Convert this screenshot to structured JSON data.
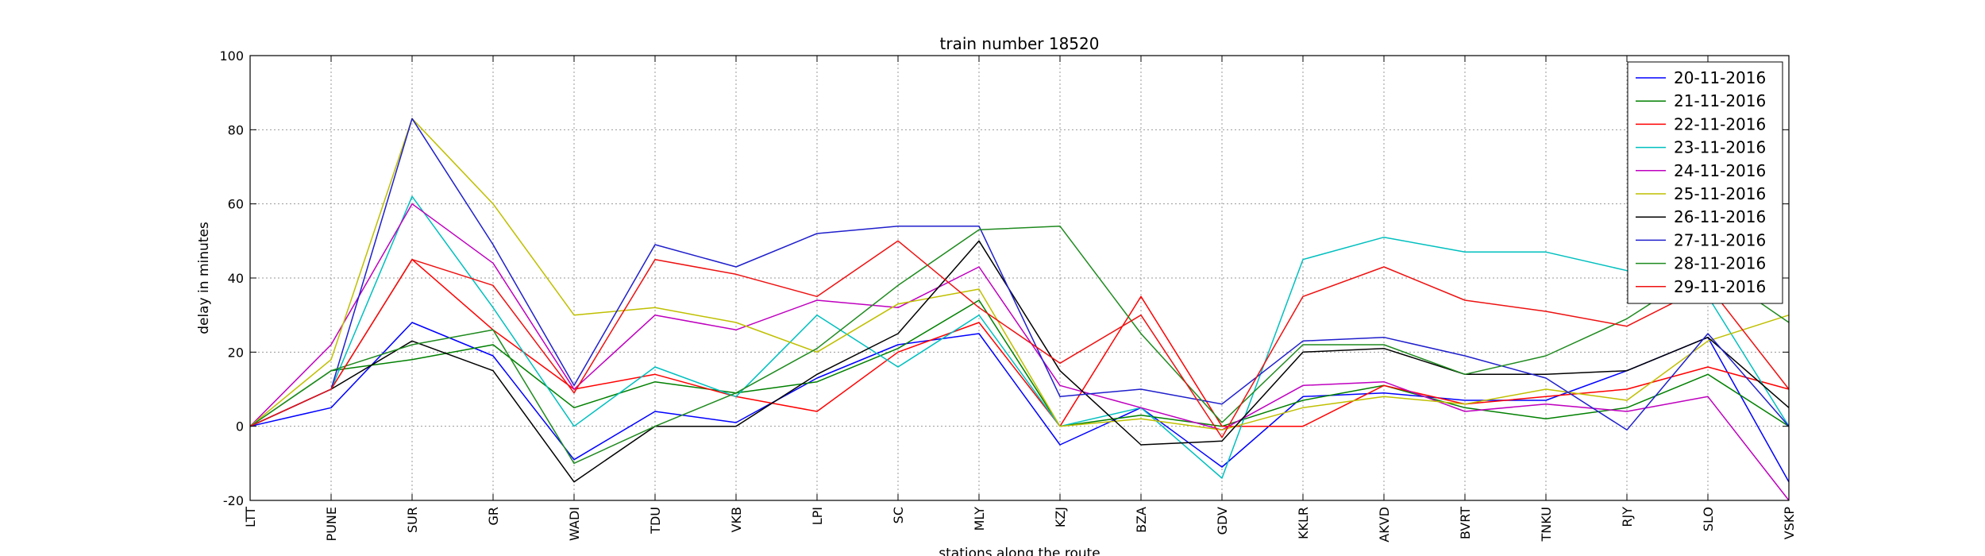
{
  "chart_data": {
    "type": "line",
    "title": "train number 18520",
    "xlabel": "stations along the route",
    "ylabel": "delay in minutes",
    "ylim": [
      -20,
      100
    ],
    "yticks": [
      -20,
      0,
      20,
      40,
      60,
      80,
      100
    ],
    "grid": true,
    "legend_position": "top-right",
    "categories": [
      "LTT",
      "PUNE",
      "SUR",
      "GR",
      "WADI",
      "TDU",
      "VKB",
      "LPI",
      "SC",
      "MLY",
      "KZJ",
      "BZA",
      "GDV",
      "KKLR",
      "AKVD",
      "BVRT",
      "TNKU",
      "RJY",
      "SLO",
      "VSKP"
    ],
    "series": [
      {
        "name": "20-11-2016",
        "color": "#0000ff",
        "values": [
          0,
          5,
          28,
          19,
          -9,
          4,
          1,
          13,
          22,
          25,
          -5,
          5,
          -11,
          8,
          9,
          7,
          7,
          15,
          24,
          -15
        ]
      },
      {
        "name": "21-11-2016",
        "color": "#008000",
        "values": [
          0,
          15,
          18,
          22,
          5,
          12,
          9,
          12,
          21,
          34,
          0,
          3,
          0,
          7,
          11,
          5,
          2,
          5,
          14,
          0
        ]
      },
      {
        "name": "22-11-2016",
        "color": "#ff0000",
        "values": [
          0,
          10,
          45,
          26,
          10,
          14,
          8,
          4,
          20,
          28,
          0,
          35,
          0,
          0,
          11,
          6,
          8,
          10,
          16,
          10
        ]
      },
      {
        "name": "23-11-2016",
        "color": "#00bfbf",
        "values": [
          0,
          10,
          62,
          32,
          0,
          16,
          8,
          30,
          16,
          30,
          0,
          5,
          -14,
          45,
          51,
          47,
          47,
          42,
          35,
          0
        ]
      },
      {
        "name": "24-11-2016",
        "color": "#bf00bf",
        "values": [
          0,
          22,
          60,
          44,
          10,
          30,
          26,
          34,
          32,
          43,
          11,
          5,
          -1,
          11,
          12,
          4,
          6,
          4,
          8,
          -20
        ]
      },
      {
        "name": "25-11-2016",
        "color": "#bfbf00",
        "values": [
          0,
          18,
          83,
          60,
          30,
          32,
          28,
          20,
          33,
          37,
          0,
          2,
          -1,
          5,
          8,
          6,
          10,
          7,
          23,
          30
        ]
      },
      {
        "name": "26-11-2016",
        "color": "#000000",
        "values": [
          0,
          10,
          23,
          15,
          -15,
          0,
          0,
          14,
          25,
          50,
          15,
          -5,
          -4,
          20,
          21,
          14,
          14,
          15,
          24,
          5
        ]
      },
      {
        "name": "27-11-2016",
        "color": "#1f1fcc",
        "values": [
          0,
          10,
          83,
          49,
          11,
          49,
          43,
          52,
          54,
          54,
          8,
          10,
          6,
          23,
          24,
          19,
          13,
          -1,
          25,
          0
        ]
      },
      {
        "name": "28-11-2016",
        "color": "#1f8a1f",
        "values": [
          0,
          15,
          22,
          26,
          -10,
          0,
          9,
          21,
          38,
          53,
          54,
          25,
          1,
          22,
          22,
          14,
          19,
          29,
          43,
          28
        ]
      },
      {
        "name": "29-11-2016",
        "color": "#ee1111",
        "values": [
          0,
          10,
          45,
          38,
          9,
          45,
          41,
          35,
          50,
          32,
          17,
          30,
          -3,
          35,
          43,
          34,
          31,
          27,
          38,
          10
        ]
      }
    ]
  }
}
